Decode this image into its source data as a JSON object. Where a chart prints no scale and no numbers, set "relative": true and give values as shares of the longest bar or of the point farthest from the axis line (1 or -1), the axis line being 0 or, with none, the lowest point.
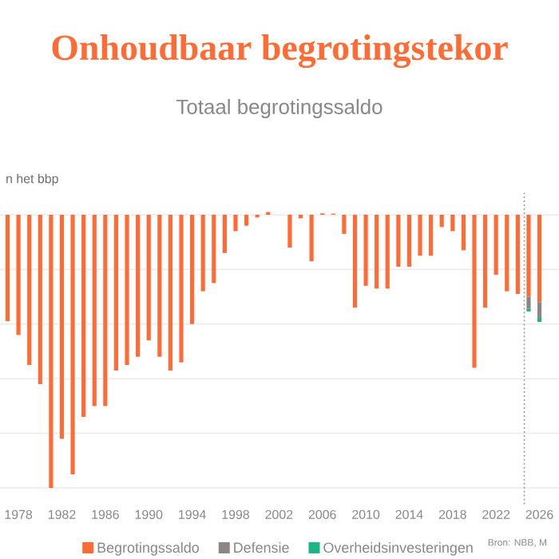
{
  "chart_data": {
    "type": "bar",
    "title": "Onhoudbaar begrotingstekor",
    "subtitle": "Totaal begrotingssaldo",
    "ylabel": "n het bbp",
    "relative": true,
    "stacked": true,
    "x": [
      1977,
      1978,
      1979,
      1980,
      1981,
      1982,
      1983,
      1984,
      1985,
      1986,
      1987,
      1988,
      1989,
      1990,
      1991,
      1992,
      1993,
      1994,
      1995,
      1996,
      1997,
      1998,
      1999,
      2000,
      2001,
      2002,
      2003,
      2004,
      2005,
      2006,
      2007,
      2008,
      2009,
      2010,
      2011,
      2012,
      2013,
      2014,
      2015,
      2016,
      2017,
      2018,
      2019,
      2020,
      2021,
      2022,
      2023,
      2024,
      2025,
      2026
    ],
    "xlim": [
      1976.3,
      2027.8
    ],
    "xticks": [
      1978,
      1982,
      1986,
      1990,
      1994,
      1998,
      2002,
      2006,
      2010,
      2014,
      2018,
      2022,
      2026
    ],
    "series": [
      {
        "name": "Begrotingssaldo",
        "color": "#ff6b35",
        "values": [
          -0.39,
          -0.44,
          -0.55,
          -0.62,
          -1,
          -0.82,
          -0.95,
          -0.74,
          -0.7,
          -0.7,
          -0.57,
          -0.55,
          -0.52,
          -0.46,
          -0.52,
          -0.57,
          -0.54,
          -0.4,
          -0.28,
          -0.25,
          -0.14,
          -0.06,
          -0.04,
          -0.01,
          0.01,
          0,
          -0.12,
          -0.013,
          -0.17,
          0.005,
          0.004,
          -0.07,
          -0.34,
          -0.26,
          -0.27,
          -0.27,
          -0.19,
          -0.19,
          -0.15,
          -0.15,
          -0.045,
          -0.06,
          -0.13,
          -0.56,
          -0.34,
          -0.22,
          -0.28,
          -0.29,
          -0.3,
          -0.32
        ]
      },
      {
        "name": "Defensie",
        "color": "#8c8585",
        "values": [
          null,
          null,
          null,
          null,
          null,
          null,
          null,
          null,
          null,
          null,
          null,
          null,
          null,
          null,
          null,
          null,
          null,
          null,
          null,
          null,
          null,
          null,
          null,
          null,
          null,
          null,
          null,
          null,
          null,
          null,
          null,
          null,
          null,
          null,
          null,
          null,
          null,
          null,
          null,
          null,
          null,
          null,
          null,
          null,
          null,
          null,
          null,
          null,
          -0.044,
          -0.057
        ]
      },
      {
        "name": "Overheidsinvesteringen",
        "color": "#1db584",
        "values": [
          null,
          null,
          null,
          null,
          null,
          null,
          null,
          null,
          null,
          null,
          null,
          null,
          null,
          null,
          null,
          null,
          null,
          null,
          null,
          null,
          null,
          null,
          null,
          null,
          null,
          null,
          null,
          null,
          null,
          null,
          null,
          null,
          null,
          null,
          null,
          null,
          null,
          null,
          null,
          null,
          null,
          null,
          null,
          null,
          null,
          null,
          null,
          null,
          -0.01,
          -0.015
        ]
      }
    ],
    "ref_lines": [
      {
        "axis": "x",
        "value": 2024.6,
        "color": "#999999",
        "line_style": "dotted"
      }
    ],
    "grid": "y",
    "legend": "bottom",
    "annotations": [
      "Bron: NBB, M"
    ]
  }
}
